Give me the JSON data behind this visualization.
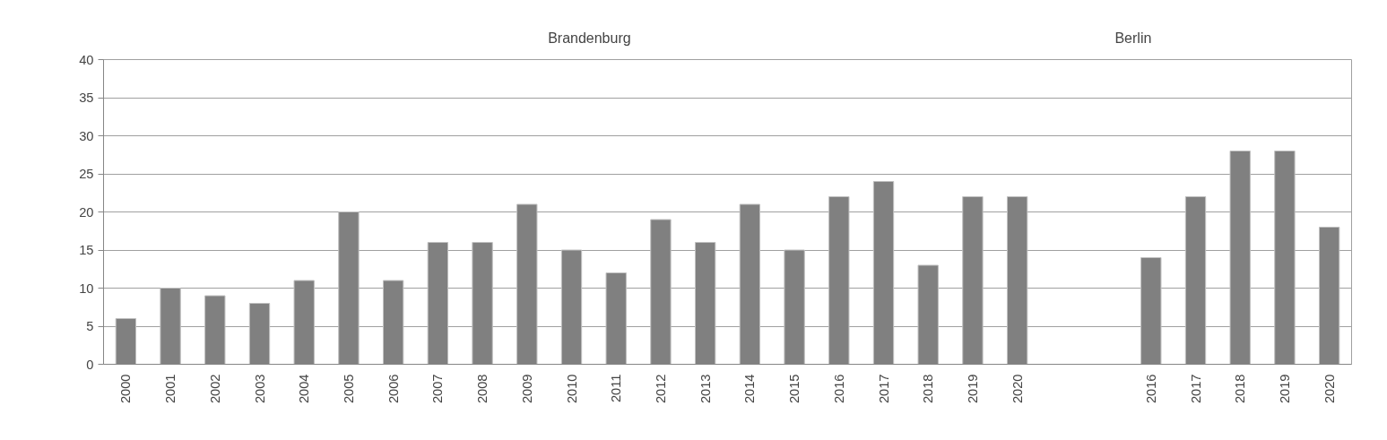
{
  "chart_data": {
    "type": "bar",
    "categories": [
      "2000",
      "2001",
      "2002",
      "2003",
      "2004",
      "2005",
      "2006",
      "2007",
      "2008",
      "2009",
      "2010",
      "2011",
      "2012",
      "2013",
      "2014",
      "2015",
      "2016",
      "2017",
      "2018",
      "2019",
      "2020",
      null,
      null,
      "2016",
      "2017",
      "2018",
      "2019",
      "2020"
    ],
    "values": [
      6,
      10,
      9,
      8,
      11,
      20,
      11,
      16,
      16,
      21,
      15,
      12,
      19,
      16,
      21,
      15,
      22,
      24,
      13,
      22,
      22,
      null,
      null,
      14,
      22,
      28,
      28,
      18
    ],
    "color": "#808080",
    "ylim": [
      0,
      40
    ],
    "yticks": [
      0,
      5,
      10,
      15,
      20,
      25,
      30,
      35,
      40
    ],
    "grid": "y",
    "annotations": [
      "Brandenburg",
      "Berlin"
    ]
  }
}
